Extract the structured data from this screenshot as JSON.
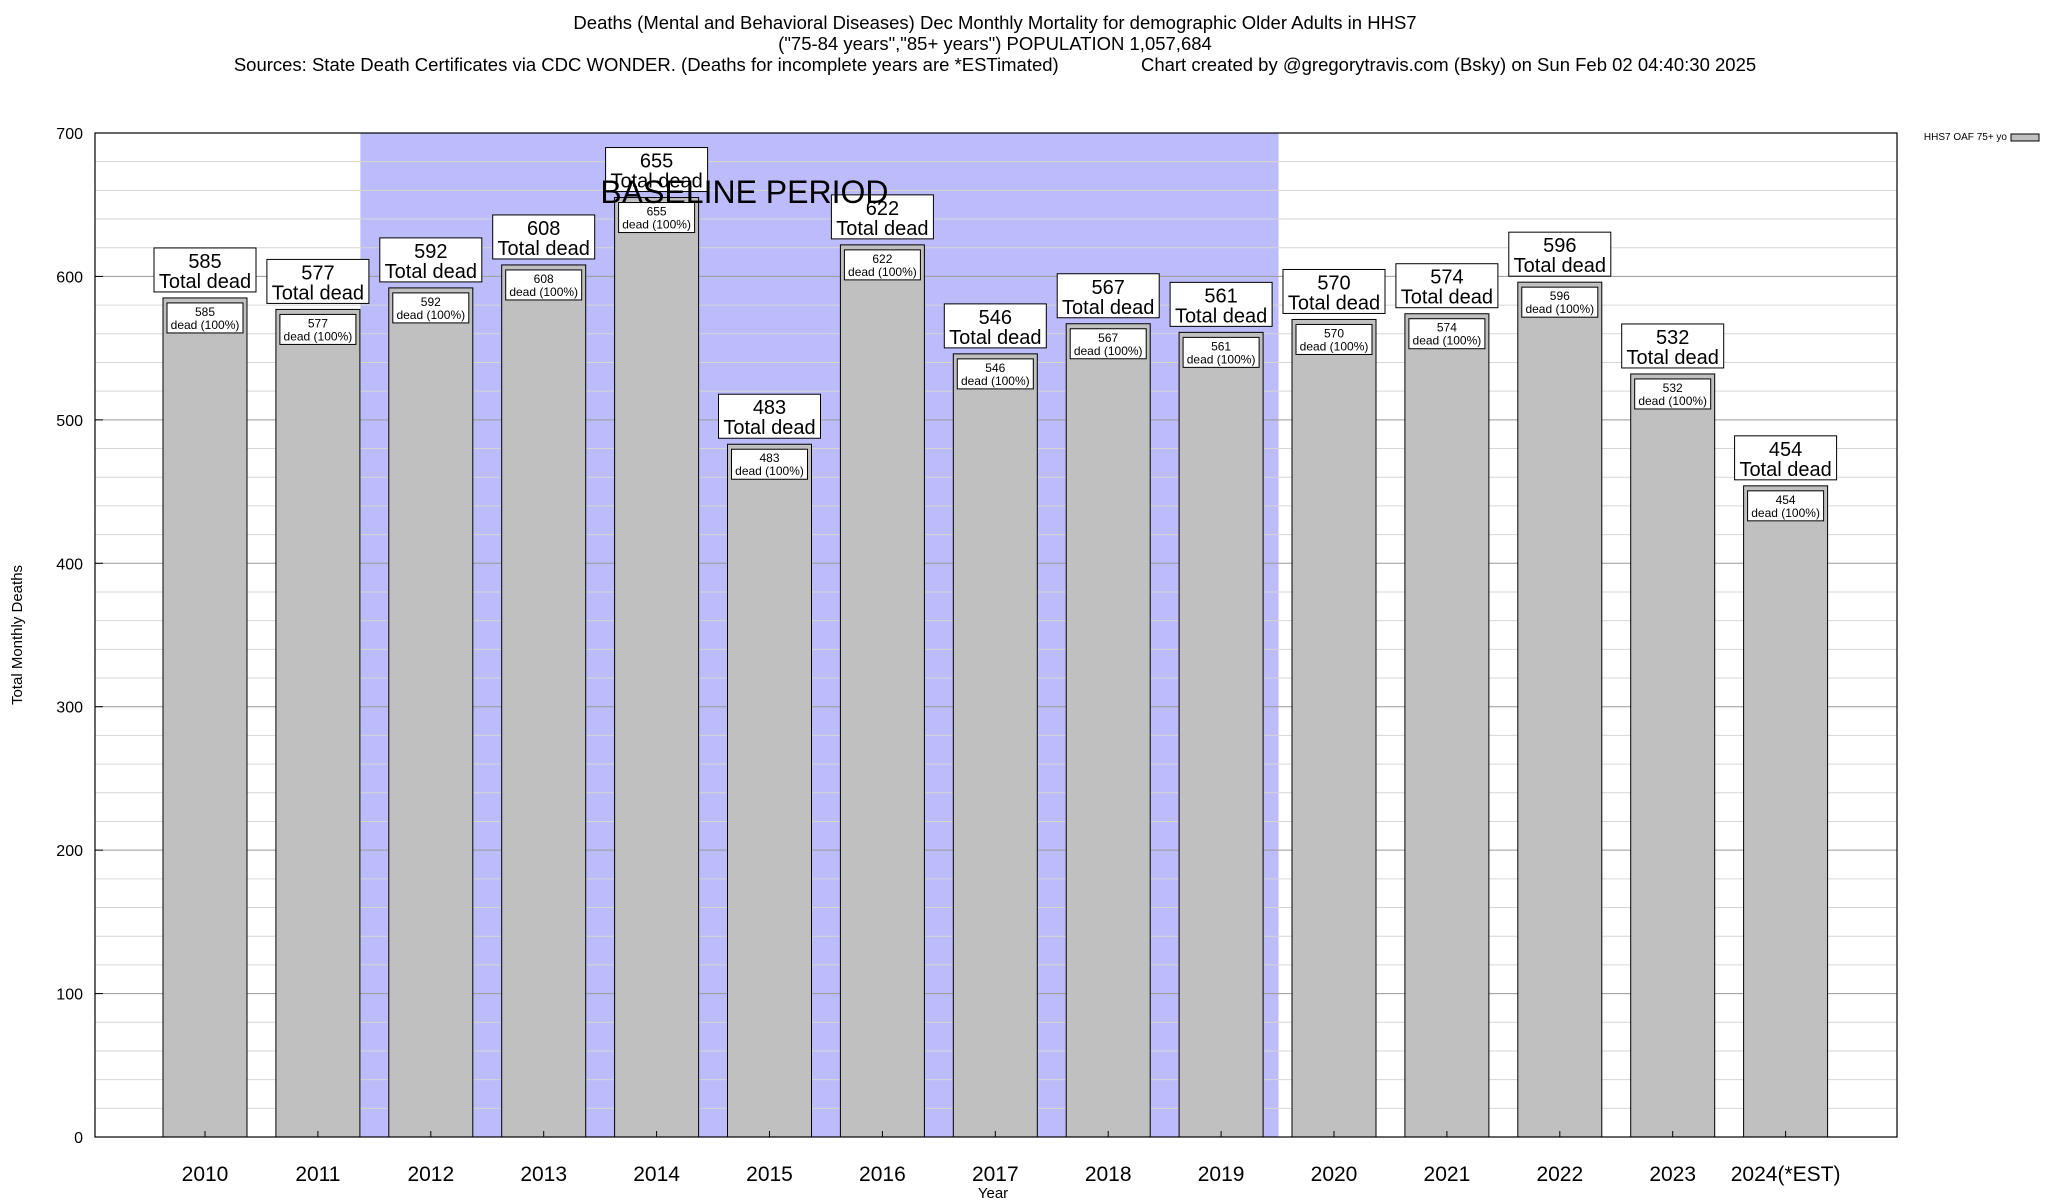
{
  "chart_data": {
    "type": "bar",
    "title": "Deaths (Mental and Behavioral Diseases) Dec Monthly Mortality for demographic Older Adults in HHS7",
    "subtitle": "(\"75-84 years\",\"85+ years\") POPULATION 1,057,684",
    "source_line": "Sources: State Death Certificates via CDC WONDER. (Deaths for incomplete years are *ESTimated)                Chart created by @gregorytravis.com (Bsky) on Sun Feb 02 04:40:30 2025",
    "xlabel": "Year",
    "ylabel": "Total Monthly Deaths",
    "ylim": [
      0,
      700
    ],
    "yticks": [
      0,
      100,
      200,
      300,
      400,
      500,
      600,
      700
    ],
    "categories": [
      "2010",
      "2011",
      "2012",
      "2013",
      "2014",
      "2015",
      "2016",
      "2017",
      "2018",
      "2019",
      "2020",
      "2021",
      "2022",
      "2023",
      "2024(*EST)"
    ],
    "series": [
      {
        "name": "HHS7 OAF 75+ yo",
        "values": [
          585,
          577,
          592,
          608,
          655,
          483,
          622,
          546,
          567,
          561,
          570,
          574,
          596,
          532,
          454
        ],
        "color": "#c0c0c0"
      }
    ],
    "total_label": "Total dead",
    "inner_label": "dead (100%)",
    "baseline": {
      "label": "BASELINE PERIOD",
      "from": "2012",
      "to": "2019",
      "color": "#bcbcfb"
    },
    "grid": true,
    "legend_position": "top-right"
  }
}
